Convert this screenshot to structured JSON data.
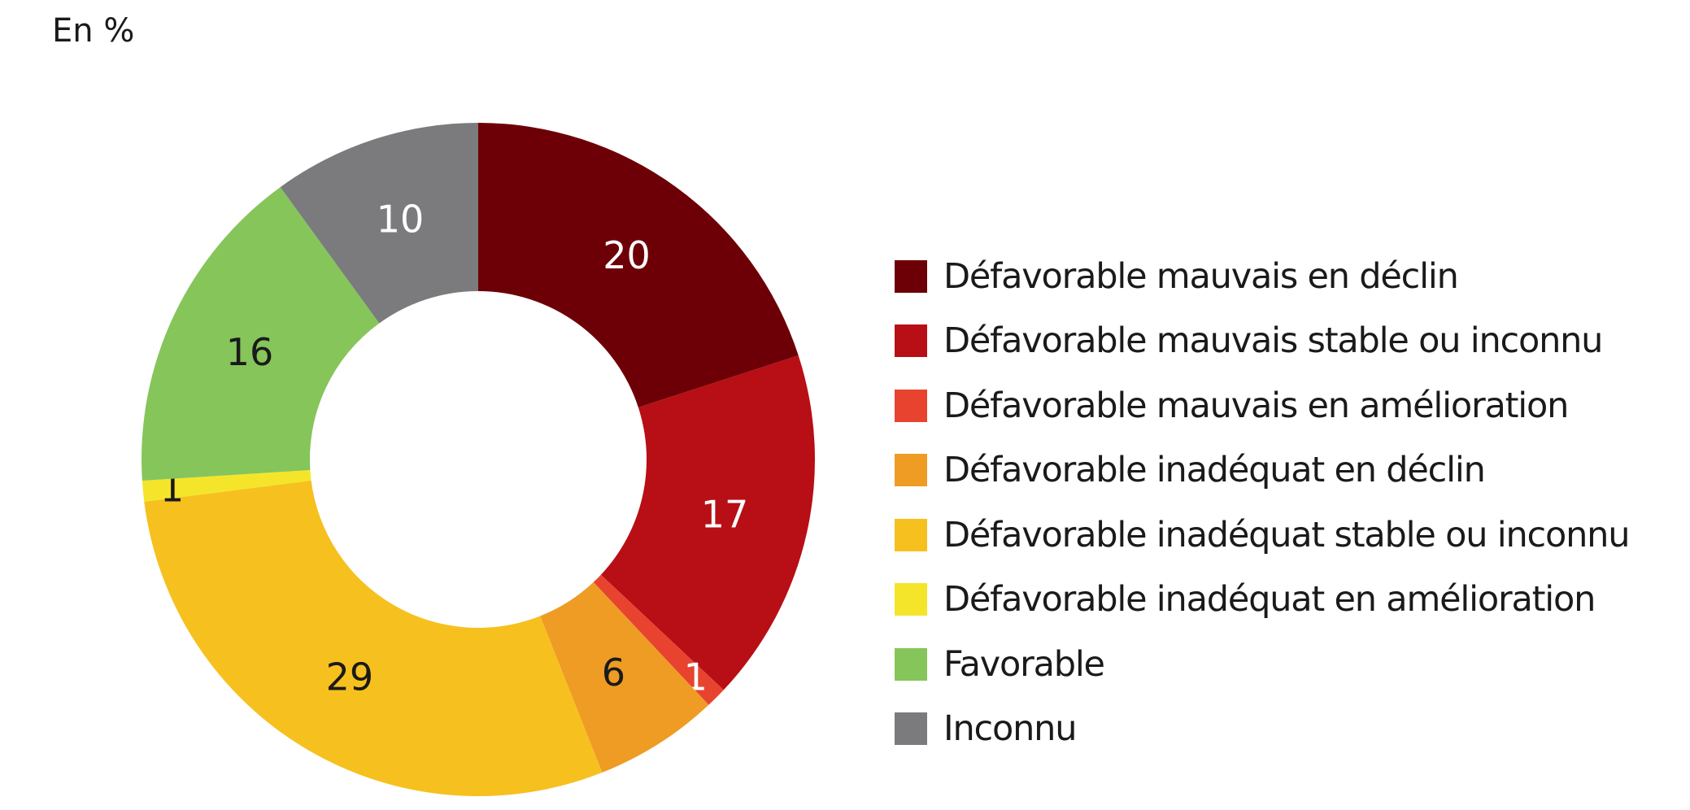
{
  "chart_data": {
    "type": "pie",
    "variant": "donut",
    "unit_label": "En %",
    "title": "",
    "legend_position": "right",
    "series": [
      {
        "name": "Défavorable mauvais en déclin",
        "value": 20,
        "label": "20",
        "color": "#6d0006",
        "label_color": "#ffffff"
      },
      {
        "name": "Défavorable mauvais stable ou inconnu",
        "value": 17,
        "label": "17",
        "color": "#b80e15",
        "label_color": "#ffffff"
      },
      {
        "name": "Défavorable mauvais en amélioration",
        "value": 1,
        "label": "1",
        "color": "#e7432f",
        "label_color": "#ffffff"
      },
      {
        "name": "Défavorable inadéquat en déclin",
        "value": 6,
        "label": "6",
        "color": "#ee9c24",
        "label_color": "#1a1a1a"
      },
      {
        "name": "Défavorable inadéquat stable ou inconnu",
        "value": 29,
        "label": "29",
        "color": "#f6c01f",
        "label_color": "#1a1a1a"
      },
      {
        "name": "Défavorable inadéquat en amélioration",
        "value": 1,
        "label": "1",
        "color": "#f5e52a",
        "label_color": "#1a1a1a"
      },
      {
        "name": "Favorable",
        "value": 16,
        "label": "16",
        "color": "#86c55a",
        "label_color": "#1a1a1a"
      },
      {
        "name": "Inconnu",
        "value": 10,
        "label": "10",
        "color": "#7b7b7d",
        "label_color": "#ffffff"
      }
    ]
  }
}
